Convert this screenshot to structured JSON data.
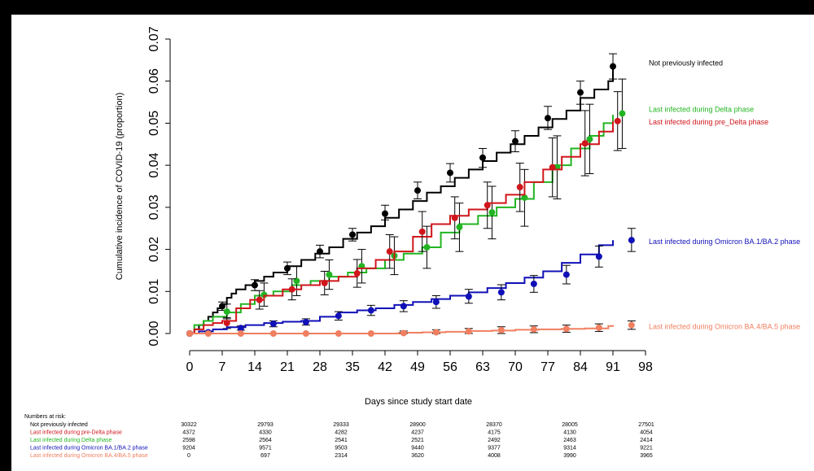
{
  "chart_data": {
    "type": "line",
    "title": "",
    "xlabel": "Days since study start date",
    "ylabel": "Cumulative incidence of COVID-19 (proportion)",
    "xlim": [
      0,
      98
    ],
    "ylim": [
      0,
      0.07
    ],
    "x_ticks": [
      0,
      7,
      14,
      21,
      28,
      35,
      42,
      49,
      56,
      63,
      70,
      77,
      84,
      91,
      98
    ],
    "x_tick_labels": [
      "0",
      "7",
      "14",
      "21",
      "28",
      "35",
      "42",
      "49",
      "56",
      "63",
      "70",
      "77",
      "84",
      "91",
      "98"
    ],
    "y_ticks": [
      0,
      0.01,
      0.02,
      0.03,
      0.04,
      0.05,
      0.06,
      0.07
    ],
    "y_tick_labels": [
      "0.00",
      "0.01",
      "0.02",
      "0.03",
      "0.04",
      "0.05",
      "0.06",
      "0.07"
    ],
    "grid": false,
    "legend": "right",
    "series": [
      {
        "name": "Not previously infected",
        "color": "#000000",
        "x": [
          0,
          1,
          2,
          3,
          4,
          5,
          6,
          7,
          8,
          9,
          10,
          12,
          14,
          16,
          18,
          21,
          24,
          27,
          30,
          33,
          36,
          39,
          42,
          45,
          48,
          51,
          54,
          57,
          60,
          63,
          66,
          69,
          72,
          75,
          78,
          81,
          84,
          87,
          90,
          91
        ],
        "y": [
          0,
          0.001,
          0.002,
          0.003,
          0.004,
          0.005,
          0.006,
          0.007,
          0.0085,
          0.0095,
          0.0105,
          0.0115,
          0.0125,
          0.0135,
          0.0145,
          0.016,
          0.0175,
          0.019,
          0.0205,
          0.0225,
          0.024,
          0.0255,
          0.0275,
          0.0295,
          0.0315,
          0.0335,
          0.035,
          0.037,
          0.039,
          0.041,
          0.043,
          0.045,
          0.047,
          0.049,
          0.051,
          0.053,
          0.056,
          0.058,
          0.06,
          0.063
        ],
        "markers": [
          {
            "x": 0,
            "y": 0,
            "lo": 0,
            "hi": 0
          },
          {
            "x": 7,
            "y": 0.0065,
            "lo": 0.0055,
            "hi": 0.0075
          },
          {
            "x": 14,
            "y": 0.0115,
            "lo": 0.0102,
            "hi": 0.0128
          },
          {
            "x": 21,
            "y": 0.0155,
            "lo": 0.014,
            "hi": 0.017
          },
          {
            "x": 28,
            "y": 0.0195,
            "lo": 0.018,
            "hi": 0.021
          },
          {
            "x": 35,
            "y": 0.0235,
            "lo": 0.022,
            "hi": 0.025
          },
          {
            "x": 42,
            "y": 0.0285,
            "lo": 0.027,
            "hi": 0.0305
          },
          {
            "x": 49,
            "y": 0.034,
            "lo": 0.032,
            "hi": 0.036
          },
          {
            "x": 56,
            "y": 0.0382,
            "lo": 0.036,
            "hi": 0.0404
          },
          {
            "x": 63,
            "y": 0.0418,
            "lo": 0.0395,
            "hi": 0.044
          },
          {
            "x": 70,
            "y": 0.0457,
            "lo": 0.0432,
            "hi": 0.0482
          },
          {
            "x": 77,
            "y": 0.0512,
            "lo": 0.0485,
            "hi": 0.054
          },
          {
            "x": 84,
            "y": 0.0573,
            "lo": 0.0545,
            "hi": 0.06
          },
          {
            "x": 91,
            "y": 0.0635,
            "lo": 0.0605,
            "hi": 0.0665
          }
        ]
      },
      {
        "name": "Last infected during Delta phase",
        "color": "#22b522",
        "x": [
          0,
          1,
          3,
          5,
          8,
          11,
          14,
          18,
          22,
          26,
          30,
          34,
          38,
          42,
          46,
          50,
          54,
          58,
          62,
          66,
          70,
          74,
          78,
          82,
          86,
          89,
          91
        ],
        "y": [
          0,
          0.002,
          0.003,
          0.004,
          0.005,
          0.007,
          0.009,
          0.01,
          0.0115,
          0.0125,
          0.0135,
          0.0145,
          0.0155,
          0.0175,
          0.019,
          0.0205,
          0.024,
          0.026,
          0.028,
          0.03,
          0.032,
          0.036,
          0.04,
          0.044,
          0.047,
          0.05,
          0.052
        ],
        "markers": [
          {
            "x": 0,
            "y": 0,
            "lo": 0,
            "hi": 0
          },
          {
            "x": 8,
            "y": 0.0052,
            "lo": 0.0035,
            "hi": 0.007
          },
          {
            "x": 16,
            "y": 0.0092,
            "lo": 0.0065,
            "hi": 0.012
          },
          {
            "x": 23,
            "y": 0.0125,
            "lo": 0.009,
            "hi": 0.016
          },
          {
            "x": 30,
            "y": 0.014,
            "lo": 0.0105,
            "hi": 0.0175
          },
          {
            "x": 37,
            "y": 0.016,
            "lo": 0.012,
            "hi": 0.02
          },
          {
            "x": 44,
            "y": 0.0185,
            "lo": 0.014,
            "hi": 0.023
          },
          {
            "x": 51,
            "y": 0.0205,
            "lo": 0.0155,
            "hi": 0.0255
          },
          {
            "x": 58,
            "y": 0.0253,
            "lo": 0.0195,
            "hi": 0.031
          },
          {
            "x": 65,
            "y": 0.0288,
            "lo": 0.0225,
            "hi": 0.035
          },
          {
            "x": 72,
            "y": 0.0323,
            "lo": 0.0255,
            "hi": 0.039
          },
          {
            "x": 79,
            "y": 0.0395,
            "lo": 0.032,
            "hi": 0.047
          },
          {
            "x": 86,
            "y": 0.0462,
            "lo": 0.038,
            "hi": 0.0545
          },
          {
            "x": 93,
            "y": 0.0523,
            "lo": 0.044,
            "hi": 0.0605
          }
        ]
      },
      {
        "name": "Last infected during pre_Delta phase",
        "color": "#d0161c",
        "x": [
          0,
          1,
          3,
          5,
          7,
          10,
          13,
          16,
          20,
          24,
          28,
          32,
          36,
          40,
          44,
          48,
          52,
          56,
          60,
          64,
          68,
          72,
          76,
          80,
          84,
          88,
          91
        ],
        "y": [
          0,
          0.001,
          0.002,
          0.0025,
          0.003,
          0.006,
          0.008,
          0.009,
          0.0105,
          0.0115,
          0.0125,
          0.0135,
          0.0155,
          0.0175,
          0.0195,
          0.023,
          0.026,
          0.028,
          0.0295,
          0.031,
          0.033,
          0.036,
          0.039,
          0.042,
          0.045,
          0.048,
          0.0505
        ],
        "markers": [
          {
            "x": 0,
            "y": 0,
            "lo": 0,
            "hi": 0
          },
          {
            "x": 8,
            "y": 0.0025,
            "lo": 0.0012,
            "hi": 0.0038
          },
          {
            "x": 15,
            "y": 0.008,
            "lo": 0.0058,
            "hi": 0.0102
          },
          {
            "x": 22,
            "y": 0.0105,
            "lo": 0.008,
            "hi": 0.013
          },
          {
            "x": 29,
            "y": 0.012,
            "lo": 0.0092,
            "hi": 0.0148
          },
          {
            "x": 36,
            "y": 0.0143,
            "lo": 0.011,
            "hi": 0.0176
          },
          {
            "x": 43,
            "y": 0.0195,
            "lo": 0.0155,
            "hi": 0.0235
          },
          {
            "x": 50,
            "y": 0.0242,
            "lo": 0.0195,
            "hi": 0.029
          },
          {
            "x": 57,
            "y": 0.0275,
            "lo": 0.0225,
            "hi": 0.0325
          },
          {
            "x": 64,
            "y": 0.0305,
            "lo": 0.025,
            "hi": 0.036
          },
          {
            "x": 71,
            "y": 0.0348,
            "lo": 0.029,
            "hi": 0.0405
          },
          {
            "x": 78,
            "y": 0.0395,
            "lo": 0.0325,
            "hi": 0.0465
          },
          {
            "x": 85,
            "y": 0.0452,
            "lo": 0.0375,
            "hi": 0.053
          },
          {
            "x": 92,
            "y": 0.0505,
            "lo": 0.0435,
            "hi": 0.0575
          }
        ]
      },
      {
        "name": "Last infected during Omicron BA.1/BA.2 phase",
        "color": "#1010b8",
        "x": [
          0,
          2,
          5,
          8,
          12,
          16,
          20,
          24,
          28,
          32,
          36,
          40,
          44,
          48,
          52,
          56,
          60,
          64,
          68,
          72,
          76,
          80,
          84,
          88,
          91
        ],
        "y": [
          0,
          0.0005,
          0.001,
          0.0015,
          0.002,
          0.0025,
          0.0028,
          0.003,
          0.004,
          0.005,
          0.0055,
          0.006,
          0.0068,
          0.0075,
          0.0082,
          0.009,
          0.0098,
          0.0108,
          0.012,
          0.0133,
          0.0148,
          0.0168,
          0.0188,
          0.021,
          0.0222
        ],
        "markers": [
          {
            "x": 0,
            "y": 0,
            "lo": 0,
            "hi": 0
          },
          {
            "x": 4,
            "y": 0.0003,
            "lo": 0.0001,
            "hi": 0.0005
          },
          {
            "x": 11,
            "y": 0.0013,
            "lo": 0.0008,
            "hi": 0.0018
          },
          {
            "x": 18,
            "y": 0.0023,
            "lo": 0.0016,
            "hi": 0.003
          },
          {
            "x": 25,
            "y": 0.0027,
            "lo": 0.002,
            "hi": 0.0035
          },
          {
            "x": 32,
            "y": 0.0042,
            "lo": 0.0032,
            "hi": 0.0052
          },
          {
            "x": 39,
            "y": 0.0055,
            "lo": 0.0043,
            "hi": 0.0067
          },
          {
            "x": 46,
            "y": 0.0065,
            "lo": 0.0052,
            "hi": 0.0078
          },
          {
            "x": 53,
            "y": 0.0075,
            "lo": 0.006,
            "hi": 0.009
          },
          {
            "x": 60,
            "y": 0.0088,
            "lo": 0.0072,
            "hi": 0.0105
          },
          {
            "x": 67,
            "y": 0.0098,
            "lo": 0.008,
            "hi": 0.0116
          },
          {
            "x": 74,
            "y": 0.0118,
            "lo": 0.0098,
            "hi": 0.0138
          },
          {
            "x": 81,
            "y": 0.014,
            "lo": 0.0118,
            "hi": 0.0162
          },
          {
            "x": 88,
            "y": 0.0183,
            "lo": 0.0158,
            "hi": 0.0208
          },
          {
            "x": 95,
            "y": 0.0222,
            "lo": 0.0195,
            "hi": 0.025
          }
        ]
      },
      {
        "name": "Last infected during Omicron BA.4/BA.5 phase",
        "color": "#f07f60",
        "x": [
          0,
          10,
          20,
          30,
          40,
          45,
          50,
          55,
          60,
          65,
          70,
          75,
          80,
          85,
          90,
          91
        ],
        "y": [
          0,
          0,
          0,
          0,
          0,
          0.0002,
          0.0003,
          0.0004,
          0.0006,
          0.0007,
          0.0009,
          0.001,
          0.0011,
          0.0012,
          0.0018,
          0.002
        ],
        "markers": [
          {
            "x": 0,
            "y": 0,
            "lo": 0,
            "hi": 0
          },
          {
            "x": 4,
            "y": 0,
            "lo": 0,
            "hi": 0
          },
          {
            "x": 11,
            "y": 0,
            "lo": 0,
            "hi": 0
          },
          {
            "x": 18,
            "y": 0,
            "lo": 0,
            "hi": 0
          },
          {
            "x": 25,
            "y": 0,
            "lo": 0,
            "hi": 0
          },
          {
            "x": 32,
            "y": 0,
            "lo": 0,
            "hi": 0
          },
          {
            "x": 39,
            "y": 0,
            "lo": 0,
            "hi": 0
          },
          {
            "x": 46,
            "y": 0.0001,
            "lo": -0.0004,
            "hi": 0.0006
          },
          {
            "x": 53,
            "y": 0.0003,
            "lo": -0.0003,
            "hi": 0.0009
          },
          {
            "x": 60,
            "y": 0.0005,
            "lo": -0.0002,
            "hi": 0.0012
          },
          {
            "x": 67,
            "y": 0.0008,
            "lo": 0,
            "hi": 0.0016
          },
          {
            "x": 74,
            "y": 0.001,
            "lo": 0.0002,
            "hi": 0.0018
          },
          {
            "x": 81,
            "y": 0.0011,
            "lo": 0.0003,
            "hi": 0.002
          },
          {
            "x": 88,
            "y": 0.0014,
            "lo": 0.0005,
            "hi": 0.0023
          },
          {
            "x": 95,
            "y": 0.002,
            "lo": 0.001,
            "hi": 0.003
          }
        ]
      }
    ],
    "legend_entries": [
      {
        "name": "Not previously infected",
        "color": "#000000",
        "label_y": 0.0645
      },
      {
        "name": "Last infected during Delta phase",
        "color": "#22b522",
        "label_y": 0.0535
      },
      {
        "name": "Last infected during pre_Delta phase",
        "color": "#d0161c",
        "label_y": 0.0505
      },
      {
        "name": "Last infected during Omicron BA.1/BA.2 phase",
        "color": "#1010b8",
        "label_y": 0.022
      },
      {
        "name": "Last infected during Omicron BA.4/BA.5 phase",
        "color": "#f07f60",
        "label_y": 0.0018
      }
    ]
  },
  "risk_table": {
    "heading": "Numbers at risk:",
    "rows": [
      {
        "label": "Not previously infected",
        "color": "#000000",
        "values": [
          "30322",
          "29793",
          "29333",
          "28900",
          "28370",
          "28005",
          "27501"
        ]
      },
      {
        "label": "Last infected during pre-Delta phase",
        "color": "#d0161c",
        "values": [
          "4372",
          "4330",
          "4282",
          "4237",
          "4175",
          "4130",
          "4054"
        ]
      },
      {
        "label": "Last infected during Delta phase",
        "color": "#22b522",
        "values": [
          "2598",
          "2564",
          "2541",
          "2521",
          "2492",
          "2463",
          "2414"
        ]
      },
      {
        "label": "Last infected during Omicron BA.1/BA.2 phase",
        "color": "#1010b8",
        "values": [
          "9204",
          "9571",
          "9503",
          "9440",
          "9377",
          "9314",
          "9221"
        ]
      },
      {
        "label": "Last infected during Omicron BA.4/BA.5 phase",
        "color": "#f07f60",
        "values": [
          "0",
          "697",
          "2314",
          "3620",
          "4008",
          "3990",
          "3965"
        ]
      }
    ]
  }
}
